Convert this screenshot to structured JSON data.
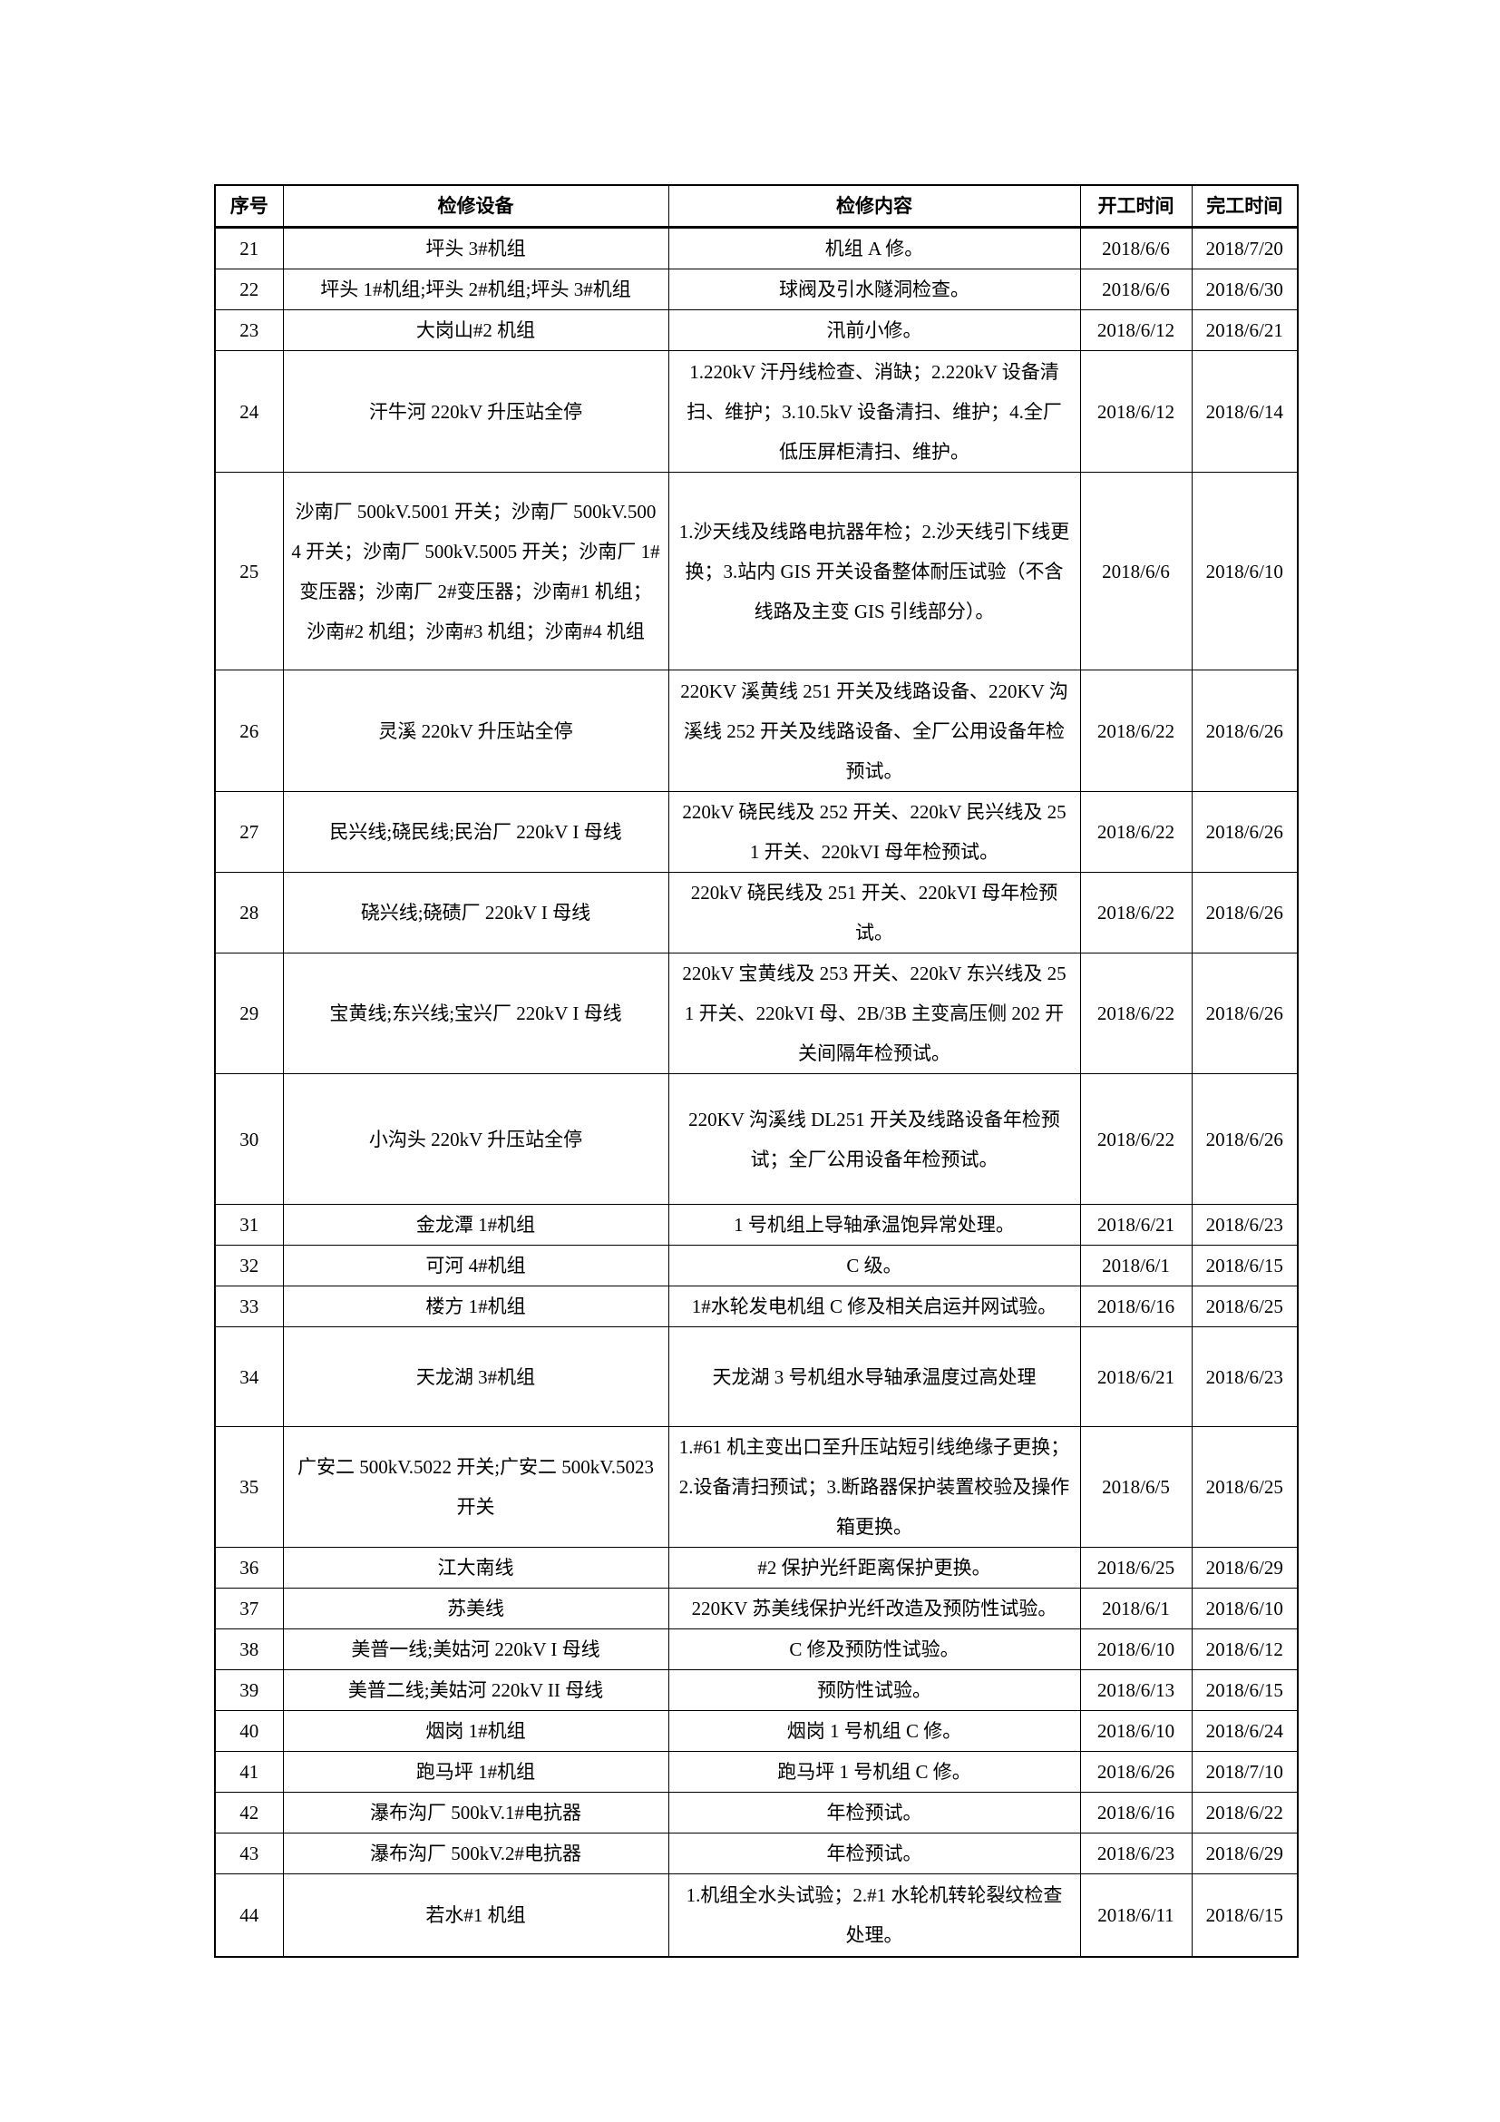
{
  "table": {
    "headers": [
      "序号",
      "检修设备",
      "检修内容",
      "开工时间",
      "完工时间"
    ],
    "rows": [
      {
        "no": "21",
        "equipment": "坪头 3#机组",
        "content": "机组 A 修。",
        "start": "2018/6/6",
        "end": "2018/7/20"
      },
      {
        "no": "22",
        "equipment": "坪头 1#机组;坪头 2#机组;坪头 3#机组",
        "content": "球阀及引水隧洞检查。",
        "start": "2018/6/6",
        "end": "2018/6/30"
      },
      {
        "no": "23",
        "equipment": "大岗山#2 机组",
        "content": "汛前小修。",
        "start": "2018/6/12",
        "end": "2018/6/21"
      },
      {
        "no": "24",
        "equipment": "汗牛河 220kV 升压站全停",
        "content": "1.220kV 汗丹线检查、消缺；2.220kV 设备清扫、维护；3.10.5kV 设备清扫、维护；4.全厂低压屏柜清扫、维护。",
        "start": "2018/6/12",
        "end": "2018/6/14"
      },
      {
        "no": "25",
        "equipment": "沙南厂 500kV.5001 开关；沙南厂 500kV.5004 开关；沙南厂 500kV.5005 开关；沙南厂 1#变压器；沙南厂 2#变压器；沙南#1 机组；沙南#2 机组；沙南#3 机组；沙南#4 机组",
        "content": "1.沙天线及线路电抗器年检；2.沙天线引下线更换；3.站内 GIS 开关设备整体耐压试验（不含线路及主变 GIS 引线部分）。",
        "start": "2018/6/6",
        "end": "2018/6/10"
      },
      {
        "no": "26",
        "equipment": "灵溪 220kV 升压站全停",
        "content": "220KV 溪黄线 251 开关及线路设备、220KV 沟溪线 252 开关及线路设备、全厂公用设备年检预试。",
        "start": "2018/6/22",
        "end": "2018/6/26"
      },
      {
        "no": "27",
        "equipment": "民兴线;硗民线;民治厂 220kV I 母线",
        "content": "220kV 硗民线及 252 开关、220kV 民兴线及 251 开关、220kVI 母年检预试。",
        "start": "2018/6/22",
        "end": "2018/6/26"
      },
      {
        "no": "28",
        "equipment": "硗兴线;硗碛厂 220kV I 母线",
        "content": "220kV 硗民线及 251 开关、220kVI 母年检预试。",
        "start": "2018/6/22",
        "end": "2018/6/26"
      },
      {
        "no": "29",
        "equipment": "宝黄线;东兴线;宝兴厂 220kV I 母线",
        "content": "220kV 宝黄线及 253 开关、220kV 东兴线及 251 开关、220kVI 母、2B/3B 主变高压侧 202 开关间隔年检预试。",
        "start": "2018/6/22",
        "end": "2018/6/26"
      },
      {
        "no": "30",
        "equipment": "小沟头 220kV 升压站全停",
        "content": "220KV 沟溪线 DL251 开关及线路设备年检预试；全厂公用设备年检预试。",
        "start": "2018/6/22",
        "end": "2018/6/26"
      },
      {
        "no": "31",
        "equipment": "金龙潭 1#机组",
        "content": "1 号机组上导轴承温饱异常处理。",
        "start": "2018/6/21",
        "end": "2018/6/23"
      },
      {
        "no": "32",
        "equipment": "可河 4#机组",
        "content": "C 级。",
        "start": "2018/6/1",
        "end": "2018/6/15"
      },
      {
        "no": "33",
        "equipment": "楼方 1#机组",
        "content": "1#水轮发电机组 C 修及相关启运并网试验。",
        "start": "2018/6/16",
        "end": "2018/6/25"
      },
      {
        "no": "34",
        "equipment": "天龙湖 3#机组",
        "content": "天龙湖 3 号机组水导轴承温度过高处理",
        "start": "2018/6/21",
        "end": "2018/6/23"
      },
      {
        "no": "35",
        "equipment": "广安二 500kV.5022 开关;广安二 500kV.5023 开关",
        "content": "1.#61 机主变出口至升压站短引线绝缘子更换；2.设备清扫预试；3.断路器保护装置校验及操作箱更换。",
        "start": "2018/6/5",
        "end": "2018/6/25"
      },
      {
        "no": "36",
        "equipment": "江大南线",
        "content": "#2 保护光纤距离保护更换。",
        "start": "2018/6/25",
        "end": "2018/6/29"
      },
      {
        "no": "37",
        "equipment": "苏美线",
        "content": "220KV 苏美线保护光纤改造及预防性试验。",
        "start": "2018/6/1",
        "end": "2018/6/10"
      },
      {
        "no": "38",
        "equipment": "美普一线;美姑河 220kV I 母线",
        "content": "C 修及预防性试验。",
        "start": "2018/6/10",
        "end": "2018/6/12"
      },
      {
        "no": "39",
        "equipment": "美普二线;美姑河 220kV II 母线",
        "content": "预防性试验。",
        "start": "2018/6/13",
        "end": "2018/6/15"
      },
      {
        "no": "40",
        "equipment": "烟岗 1#机组",
        "content": "烟岗 1 号机组 C 修。",
        "start": "2018/6/10",
        "end": "2018/6/24"
      },
      {
        "no": "41",
        "equipment": "跑马坪 1#机组",
        "content": "跑马坪 1 号机组 C 修。",
        "start": "2018/6/26",
        "end": "2018/7/10"
      },
      {
        "no": "42",
        "equipment": "瀑布沟厂 500kV.1#电抗器",
        "content": "年检预试。",
        "start": "2018/6/16",
        "end": "2018/6/22"
      },
      {
        "no": "43",
        "equipment": "瀑布沟厂 500kV.2#电抗器",
        "content": "年检预试。",
        "start": "2018/6/23",
        "end": "2018/6/29"
      },
      {
        "no": "44",
        "equipment": "若水#1 机组",
        "content": "1.机组全水头试验；2.#1 水轮机转轮裂纹检查处理。",
        "start": "2018/6/11",
        "end": "2018/6/15"
      }
    ]
  }
}
